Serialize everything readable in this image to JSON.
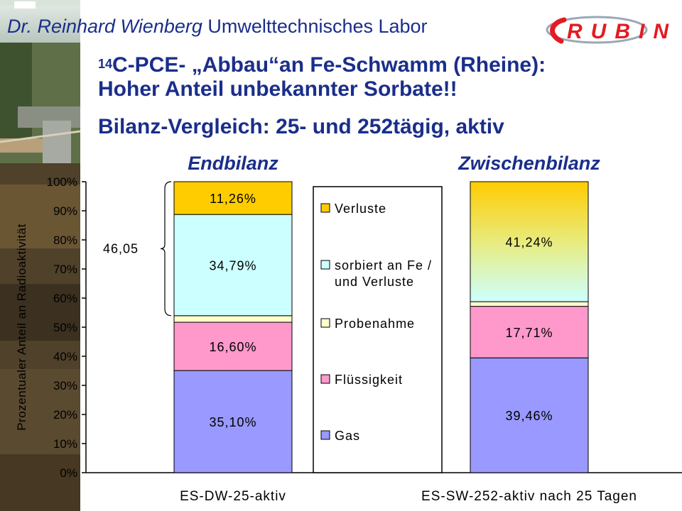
{
  "header": {
    "author_name": "Dr. Reinhard Wienberg",
    "lab_name": "Umwelttechnisches Labor",
    "logo_text": "RUBIN"
  },
  "title": {
    "isotope_mass": "14",
    "line1_rest": "C-PCE- „Abbau“an Fe-Schwamm (Rheine):",
    "line2": "Hoher Anteil unbekannter Sorbate!!"
  },
  "subtitle": "Bilanz-Vergleich: 25- und 252tägig, aktiv",
  "bar_headings": [
    "Endbilanz",
    "Zwischenbilanz"
  ],
  "colors": {
    "title": "#1a2e8a",
    "gas": "#9999ff",
    "fluessigkeit": "#ff99cc",
    "probenahme": "#ffffcc",
    "sorbiert": "#ccffff",
    "verluste": "#ffcc00"
  },
  "chart_data": {
    "type": "bar",
    "stacked": true,
    "ylabel": "Prozentualer Anteil an Radioaktivität",
    "ylim": [
      0,
      100
    ],
    "y_ticks": [
      "0%",
      "10%",
      "20%",
      "30%",
      "40%",
      "50%",
      "60%",
      "70%",
      "80%",
      "90%",
      "100%"
    ],
    "categories": [
      "ES-DW-25-aktiv",
      "ES-SW-252-aktiv nach 25 Tagen"
    ],
    "series": [
      {
        "name": "Gas",
        "values": [
          35.1,
          39.46
        ],
        "labels": [
          "35,10%",
          "39,46%"
        ]
      },
      {
        "name": "Flüssigkeit",
        "values": [
          16.6,
          17.71
        ],
        "labels": [
          "16,60%",
          "17,71%"
        ]
      },
      {
        "name": "Probenahme",
        "values": [
          2.25,
          1.59
        ],
        "labels": [
          "",
          ""
        ]
      },
      {
        "name": "sorbiert an Fe / und Verluste",
        "values": [
          34.79,
          0
        ],
        "labels": [
          "34,79%",
          ""
        ]
      },
      {
        "name": "Verluste",
        "values": [
          11.26,
          41.24
        ],
        "labels": [
          "11,26%",
          "41,24%"
        ]
      }
    ],
    "legend": {
      "placement": "between bars",
      "order": [
        "Verluste",
        "sorbiert an Fe / und Verluste",
        "Probenahme",
        "Flüssigkeit",
        "Gas"
      ],
      "entries": [
        "Verluste",
        "sorbiert an Fe /",
        "und Verluste",
        "Probenahme",
        "Flüssigkeit",
        "Gas"
      ]
    },
    "annotation": {
      "text": "46,05",
      "spans_series": [
        "sorbiert an Fe / und Verluste",
        "Verluste"
      ],
      "category": "ES-DW-25-aktiv"
    },
    "grid": false
  }
}
